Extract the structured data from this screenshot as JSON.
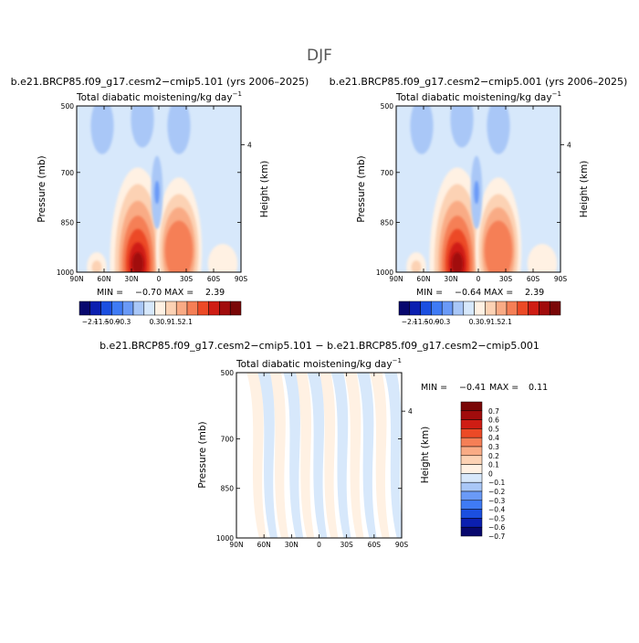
{
  "figure": {
    "season": "DJF",
    "diff_title": "b.e21.BRCP85.f09_g17.cesm2−cmip5.101 − b.e21.BRCP85.f09_g17.cesm2−cmip5.001"
  },
  "colors": {
    "main_scale": [
      "#08086e",
      "#0b1fb0",
      "#1b4fe0",
      "#3f7bf5",
      "#6a9af7",
      "#a9c7f7",
      "#d7e8fb",
      "#fff1e3",
      "#fcd2b4",
      "#f9ab85",
      "#f57f56",
      "#ec4a26",
      "#cf1d14",
      "#a10c0c",
      "#7a0707"
    ],
    "diff_scale": [
      "#08086e",
      "#0b1fb0",
      "#1b4fe0",
      "#3f7bf5",
      "#6a9af7",
      "#a9c7f7",
      "#d7e8fb",
      "#fff1e3",
      "#fcd2b4",
      "#f9ab85",
      "#f57f56",
      "#ec4a26",
      "#cf1d14",
      "#a10c0c",
      "#7a0707"
    ]
  },
  "chart_data": [
    {
      "id": "panel-101",
      "type": "heatmap",
      "run_label": "b.e21.BRCP85.f09_g17.cesm2−cmip5.101 (yrs 2006–2025)",
      "title": "Total diabatic moistening/kg day",
      "title_exponent": "−1",
      "ylabel": "Pressure (mb)",
      "ylabel_right": "Height (km)",
      "x_ticks": [
        "90N",
        "60N",
        "30N",
        "0",
        "30S",
        "60S",
        "90S"
      ],
      "x_values": [
        90,
        60,
        30,
        0,
        -30,
        -60,
        -90
      ],
      "y_ticks": [
        {
          "label": "500",
          "value": 500
        },
        {
          "label": "700",
          "value": 700
        },
        {
          "label": "850",
          "value": 850
        },
        {
          "label": "1000",
          "value": 1000
        }
      ],
      "right_ticks": [
        {
          "label": "4",
          "value": 4
        }
      ],
      "ylim": [
        500,
        1000
      ],
      "min_label": "MIN =",
      "min_value": "−0.70",
      "max_label": "MAX =",
      "max_value": "2.39",
      "colorbar_labels": [
        "−2.1",
        "−1.5",
        "−0.9",
        "−0.3",
        "0.3",
        "0.9",
        "1.5",
        "2.1"
      ],
      "features": [
        {
          "kind": "upper-dry",
          "lat": 62,
          "p": 560,
          "value": -0.3
        },
        {
          "kind": "upper-dry",
          "lat": 18,
          "p": 540,
          "value": -0.3
        },
        {
          "kind": "upper-dry",
          "lat": -22,
          "p": 560,
          "value": -0.3
        },
        {
          "kind": "nh-subtropics",
          "lat": 23,
          "p": 975,
          "value": 2.39
        },
        {
          "kind": "sh-subtropics",
          "lat": -22,
          "p": 935,
          "value": 1.2
        },
        {
          "kind": "nh-midlat",
          "lat": 68,
          "p": 985,
          "value": 0.5
        },
        {
          "kind": "sh-midlat",
          "lat": -70,
          "p": 975,
          "value": 0.4
        },
        {
          "kind": "equatorial-dry",
          "lat": 2,
          "p": 760,
          "value": -0.5
        }
      ]
    },
    {
      "id": "panel-001",
      "type": "heatmap",
      "run_label": "b.e21.BRCP85.f09_g17.cesm2−cmip5.001 (yrs 2006–2025)",
      "title": "Total diabatic moistening/kg day",
      "title_exponent": "−1",
      "ylabel": "Pressure (mb)",
      "ylabel_right": "Height (km)",
      "x_ticks": [
        "90N",
        "60N",
        "30N",
        "0",
        "30S",
        "60S",
        "90S"
      ],
      "x_values": [
        90,
        60,
        30,
        0,
        -30,
        -60,
        -90
      ],
      "y_ticks": [
        {
          "label": "500",
          "value": 500
        },
        {
          "label": "700",
          "value": 700
        },
        {
          "label": "850",
          "value": 850
        },
        {
          "label": "1000",
          "value": 1000
        }
      ],
      "right_ticks": [
        {
          "label": "4",
          "value": 4
        }
      ],
      "ylim": [
        500,
        1000
      ],
      "min_label": "MIN =",
      "min_value": "−0.64",
      "max_label": "MAX =",
      "max_value": "2.39",
      "colorbar_labels": [
        "−2.1",
        "−1.5",
        "−0.9",
        "−0.3",
        "0.3",
        "0.9",
        "1.5",
        "2.1"
      ],
      "features": [
        {
          "kind": "upper-dry",
          "lat": 62,
          "p": 560,
          "value": -0.3
        },
        {
          "kind": "upper-dry",
          "lat": 18,
          "p": 540,
          "value": -0.3
        },
        {
          "kind": "upper-dry",
          "lat": -22,
          "p": 560,
          "value": -0.3
        },
        {
          "kind": "nh-subtropics",
          "lat": 23,
          "p": 975,
          "value": 2.39
        },
        {
          "kind": "sh-subtropics",
          "lat": -22,
          "p": 935,
          "value": 1.2
        },
        {
          "kind": "nh-midlat",
          "lat": 68,
          "p": 985,
          "value": 0.5
        },
        {
          "kind": "sh-midlat",
          "lat": -70,
          "p": 975,
          "value": 0.4
        },
        {
          "kind": "equatorial-dry",
          "lat": 2,
          "p": 760,
          "value": -0.5
        }
      ]
    },
    {
      "id": "panel-diff",
      "type": "heatmap",
      "title": "Total diabatic moistening/kg day",
      "title_exponent": "−1",
      "ylabel": "Pressure (mb)",
      "ylabel_right": "Height (km)",
      "x_ticks": [
        "90N",
        "60N",
        "30N",
        "0",
        "30S",
        "60S",
        "90S"
      ],
      "x_values": [
        90,
        60,
        30,
        0,
        -30,
        -60,
        -90
      ],
      "y_ticks": [
        {
          "label": "500",
          "value": 500
        },
        {
          "label": "700",
          "value": 700
        },
        {
          "label": "850",
          "value": 850
        },
        {
          "label": "1000",
          "value": 1000
        }
      ],
      "right_ticks": [
        {
          "label": "4",
          "value": 4
        }
      ],
      "ylim": [
        500,
        1000
      ],
      "min_label": "MIN =",
      "min_value": "−0.41",
      "max_label": "MAX =",
      "max_value": "0.11",
      "colorbar_labels": [
        "0.7",
        "0.6",
        "0.5",
        "0.4",
        "0.3",
        "0.2",
        "0.1",
        "0",
        "−0.1",
        "−0.2",
        "−0.3",
        "−0.4",
        "−0.5",
        "−0.6",
        "−0.7"
      ],
      "features": [
        {
          "kind": "positive-stripe",
          "lat": 72,
          "value": 0.05
        },
        {
          "kind": "positive-stripe",
          "lat": 48,
          "value": 0.05
        },
        {
          "kind": "positive-stripe",
          "lat": 20,
          "value": 0.05
        },
        {
          "kind": "positive-stripe",
          "lat": -6,
          "value": 0.05
        },
        {
          "kind": "positive-stripe",
          "lat": -34,
          "value": 0.05
        },
        {
          "kind": "positive-stripe",
          "lat": -62,
          "value": 0.05
        },
        {
          "kind": "negative-stripe",
          "lat": 60,
          "value": -0.05
        },
        {
          "kind": "negative-stripe",
          "lat": 32,
          "value": -0.05
        },
        {
          "kind": "negative-stripe",
          "lat": 6,
          "value": -0.05
        },
        {
          "kind": "negative-stripe",
          "lat": -20,
          "value": -0.05
        },
        {
          "kind": "negative-stripe",
          "lat": -48,
          "value": -0.05
        },
        {
          "kind": "negative-stripe",
          "lat": -78,
          "value": -0.05
        }
      ]
    }
  ]
}
